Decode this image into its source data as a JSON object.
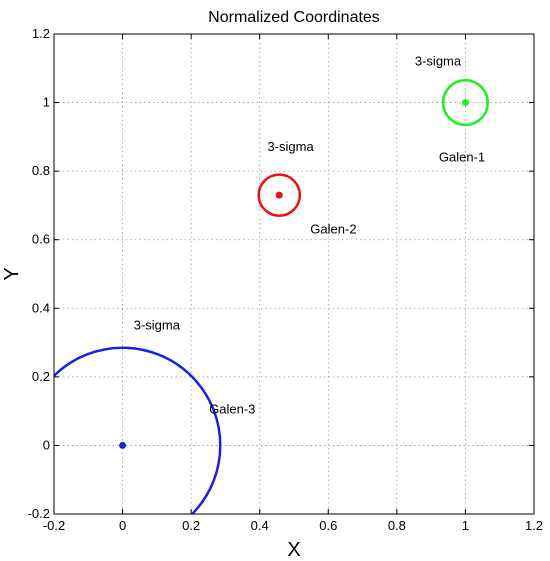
{
  "chart_data": {
    "type": "scatter",
    "title": "Normalized Coordinates",
    "xlabel": "X",
    "ylabel": "Y",
    "xlim": [
      -0.2,
      1.2
    ],
    "ylim": [
      -0.2,
      1.2
    ],
    "grid": true,
    "x_ticks": [
      "-0.2",
      "0",
      "0.2",
      "0.4",
      "0.6",
      "0.8",
      "1",
      "1.2"
    ],
    "y_ticks": [
      "-0.2",
      "0",
      "0.2",
      "0.4",
      "0.6",
      "0.8",
      "1",
      "1.2"
    ],
    "series": [
      {
        "name": "Galen-1",
        "color": "#22ee22",
        "center": [
          1.0,
          1.0
        ],
        "sigma_radius": 0.065,
        "sigma_label": "3-sigma",
        "name_label_pos": [
          0.99,
          0.84
        ],
        "sigma_label_pos": [
          0.92,
          1.12
        ]
      },
      {
        "name": "Galen-2",
        "color": "#ee1111",
        "center": [
          0.457,
          0.73
        ],
        "sigma_radius": 0.06,
        "sigma_label": "3-sigma",
        "name_label_pos": [
          0.615,
          0.63
        ],
        "sigma_label_pos": [
          0.49,
          0.87
        ]
      },
      {
        "name": "Galen-3",
        "color": "#1a22dd",
        "center": [
          0.0,
          0.0
        ],
        "sigma_radius": 0.285,
        "sigma_label": "3-sigma",
        "name_label_pos": [
          0.32,
          0.105
        ],
        "sigma_label_pos": [
          0.1,
          0.35
        ]
      }
    ]
  }
}
